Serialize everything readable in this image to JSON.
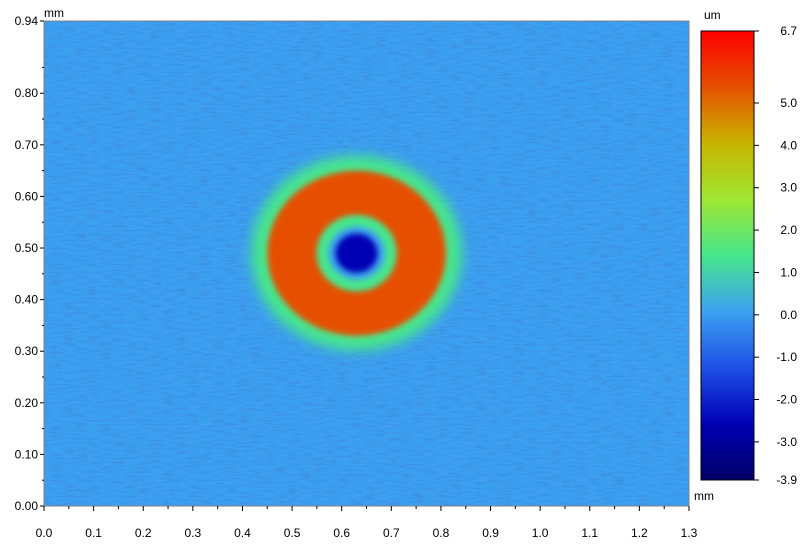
{
  "chart_data": {
    "type": "heatmap",
    "title": "",
    "x_unit": "mm",
    "y_unit": "mm",
    "colorbar_unit": "um",
    "xlim": [
      0.0,
      1.3
    ],
    "ylim": [
      0.0,
      0.94
    ],
    "x_ticks": [
      "0.0",
      "0.1",
      "0.2",
      "0.3",
      "0.4",
      "0.5",
      "0.6",
      "0.7",
      "0.8",
      "0.9",
      "1.0",
      "1.1",
      "1.2",
      "1.3"
    ],
    "y_ticks": [
      "0.00",
      "0.10",
      "0.20",
      "0.30",
      "0.40",
      "0.50",
      "0.60",
      "0.70",
      "0.80",
      "0.94"
    ],
    "colorbar_ticks": [
      "6.7",
      "5.0",
      "4.0",
      "3.0",
      "2.0",
      "1.0",
      "0.0",
      "-1.0",
      "-2.0",
      "-3.0",
      "-3.9"
    ],
    "zlim": [
      -3.9,
      6.7
    ],
    "colormap": [
      "#000066",
      "#0000b4",
      "#1e50e6",
      "#3ca0f0",
      "#46e68c",
      "#a0e632",
      "#c8b400",
      "#e65000",
      "#ff0000"
    ],
    "features": {
      "background_height": 0.0,
      "ring": {
        "center": [
          0.63,
          0.49
        ],
        "outer_radius": [
          0.18,
          0.16
        ],
        "inner_radius": [
          0.06,
          0.055
        ],
        "height": 6.0
      },
      "center_pit": {
        "center": [
          0.63,
          0.49
        ],
        "radius": [
          0.05,
          0.045
        ],
        "height": -3.0
      },
      "halo_height": 1.5
    }
  }
}
